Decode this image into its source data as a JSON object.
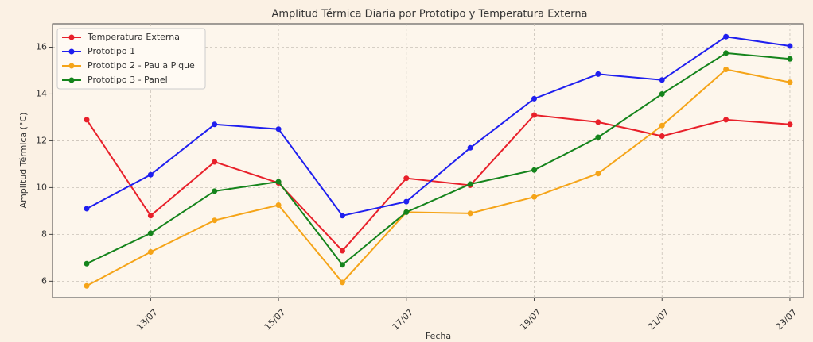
{
  "chart_data": {
    "type": "line",
    "title": "Amplitud Térmica Diaria por Prototipo y Temperatura Externa",
    "x_label": "Fecha",
    "y_label": "Amplitud Térmica (°C)",
    "categories": [
      null,
      "13/07",
      null,
      "15/07",
      null,
      "17/07",
      null,
      "19/07",
      null,
      "21/07",
      null,
      "23/07"
    ],
    "series": [
      {
        "name": "Temperatura Externa",
        "color": "#e8202a",
        "values": [
          12.9,
          8.8,
          11.1,
          10.2,
          7.3,
          10.4,
          10.1,
          13.1,
          12.8,
          12.2,
          12.9,
          12.7
        ]
      },
      {
        "name": "Prototipo 1",
        "color": "#1f1fef",
        "values": [
          9.1,
          10.55,
          12.7,
          12.5,
          8.8,
          9.4,
          11.7,
          13.8,
          14.85,
          14.6,
          16.45,
          16.05
        ]
      },
      {
        "name": "Prototipo 2 - Pau a Pique",
        "color": "#f5a418",
        "values": [
          5.8,
          7.25,
          8.6,
          9.25,
          5.95,
          8.95,
          8.9,
          9.6,
          10.6,
          12.65,
          15.05,
          14.5
        ]
      },
      {
        "name": "Prototipo 3 - Panel",
        "color": "#15841c",
        "values": [
          6.75,
          8.05,
          9.85,
          10.25,
          6.7,
          8.95,
          10.15,
          10.75,
          12.15,
          14.0,
          15.75,
          15.5
        ]
      }
    ],
    "ylim": [
      5.3,
      17
    ],
    "yticks": [
      6,
      8,
      10,
      12,
      14,
      16
    ],
    "grid": true,
    "legend": "upper left"
  }
}
